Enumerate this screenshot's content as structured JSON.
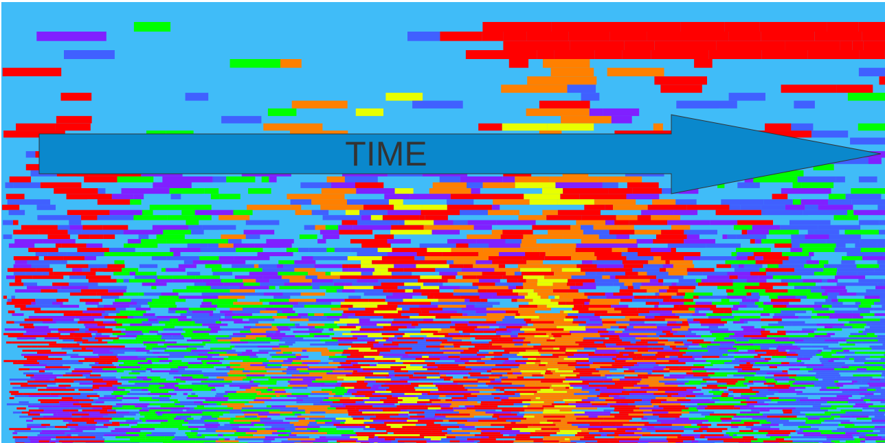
{
  "arrow": {
    "label": "TIME"
  }
}
